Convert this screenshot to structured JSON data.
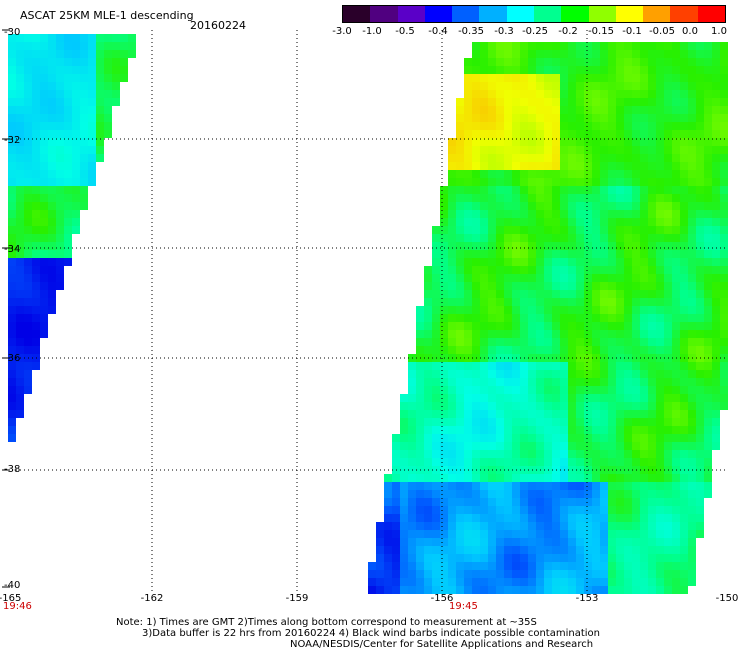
{
  "title": "ASCAT 25KM MLE-1 descending",
  "date": "20160224",
  "colorbar": {
    "tick_labels": [
      "-3.0",
      "-1.0",
      "-0.5",
      "-0.4",
      "-0.35",
      "-0.3",
      "-0.25",
      "-0.2",
      "-0.15",
      "-0.1",
      "-0.05",
      "0.0",
      "1.0"
    ],
    "colors": [
      "#2a002a",
      "#500080",
      "#5a00c8",
      "#0000ff",
      "#0060ff",
      "#00b0ff",
      "#00ffff",
      "#00ff90",
      "#00ff00",
      "#90ff00",
      "#ffff00",
      "#ffa000",
      "#ff4000",
      "#ff0000"
    ]
  },
  "lat_labels": [
    "-30",
    "-32",
    "-34",
    "-36",
    "-38",
    "-40"
  ],
  "lon_labels": [
    "-165",
    "-162",
    "-159",
    "-156",
    "-153",
    "-150"
  ],
  "pass_times": [
    "19:46",
    "19:45"
  ],
  "notes": [
    "Note: 1) Times are GMT 2)Times along bottom correspond to measurement at ~35S",
    "3)Data buffer is 22 hrs from 20160224 4) Black wind barbs indicate possible contamination",
    "NOAA/NESDIS/Center for Satellite Applications and Research"
  ]
}
